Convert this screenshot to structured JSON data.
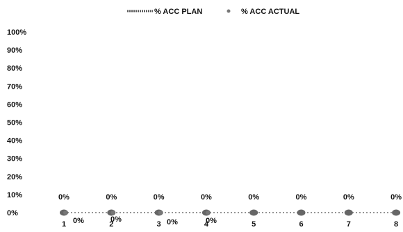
{
  "chart_data": {
    "type": "line",
    "title": "",
    "xlabel": "",
    "ylabel": "",
    "categories": [
      "1",
      "2",
      "3",
      "4",
      "5",
      "6",
      "7",
      "8"
    ],
    "ylim": [
      0,
      100
    ],
    "y_ticks": [
      "0%",
      "10%",
      "20%",
      "30%",
      "40%",
      "50%",
      "60%",
      "70%",
      "80%",
      "90%",
      "100%"
    ],
    "grid": false,
    "legend_position": "top",
    "series": [
      {
        "name": "% ACC PLAN",
        "values": [
          0,
          0,
          0,
          0,
          0,
          0,
          0,
          0
        ],
        "labels": [
          "0%",
          "0%",
          "0%",
          "0%",
          "0%",
          "0%",
          "0%",
          "0%"
        ],
        "color": "#555555",
        "marker": "line"
      },
      {
        "name": "% ACC ACTUAL",
        "values": [
          0,
          0,
          0,
          0,
          null,
          null,
          null,
          null
        ],
        "labels": [
          "0%",
          "0%",
          "0%",
          "0%"
        ],
        "color": "#777777",
        "marker": "circle"
      }
    ]
  }
}
